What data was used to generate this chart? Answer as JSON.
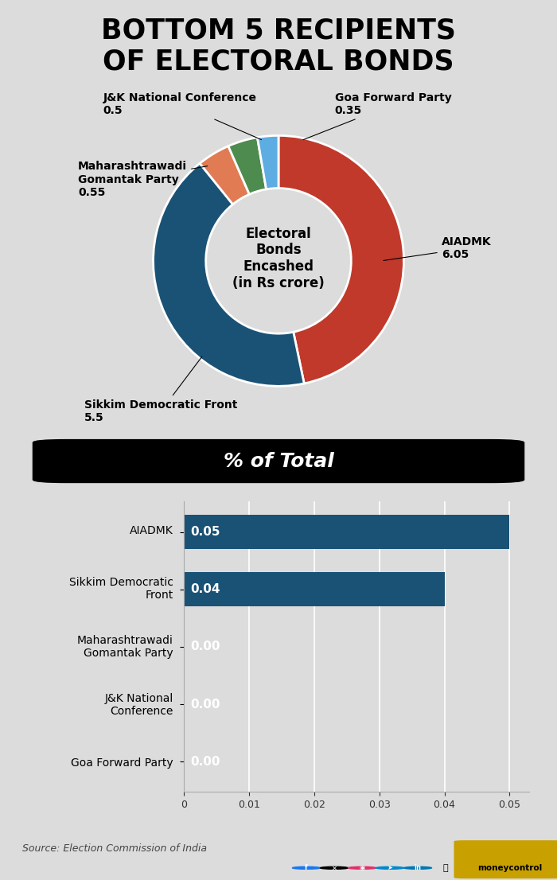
{
  "title": "BOTTOM 5 RECIPIENTS\nOF ELECTORAL BONDS",
  "background_color": "#dcdcdc",
  "donut": {
    "labels": [
      "AIADMK",
      "Sikkim Democratic Front",
      "Maharashtrawadi Gomantak Party",
      "J&K National Conference",
      "Goa Forward Party"
    ],
    "values": [
      6.05,
      5.5,
      0.55,
      0.5,
      0.35
    ],
    "colors": [
      "#c0392b",
      "#1a5276",
      "#e07b54",
      "#4e8b4e",
      "#5dade2"
    ],
    "center_text": "Electoral\nBonds\nEncashed\n(in Rs crore)",
    "label_values": [
      "6.05",
      "5.5",
      "0.55",
      "0.5",
      "0.35"
    ]
  },
  "bar": {
    "labels": [
      "AIADMK",
      "Sikkim Democratic\nFront",
      "Maharashtrawadi\nGomantak Party",
      "J&K National\nConference",
      "Goa Forward Party"
    ],
    "values": [
      0.05,
      0.04,
      0.0,
      0.0,
      0.0
    ],
    "value_labels": [
      "0.05",
      "0.04",
      "0.00",
      "0.00",
      "0.00"
    ],
    "color": "#1a5276",
    "xticks": [
      0,
      0.01,
      0.02,
      0.03,
      0.04,
      0.05
    ],
    "xtick_labels": [
      "0",
      "0.01",
      "0.02",
      "0.03",
      "0.04",
      "0.05"
    ]
  },
  "percent_label": "% of Total",
  "source_text": "Source: Election Commission of India"
}
